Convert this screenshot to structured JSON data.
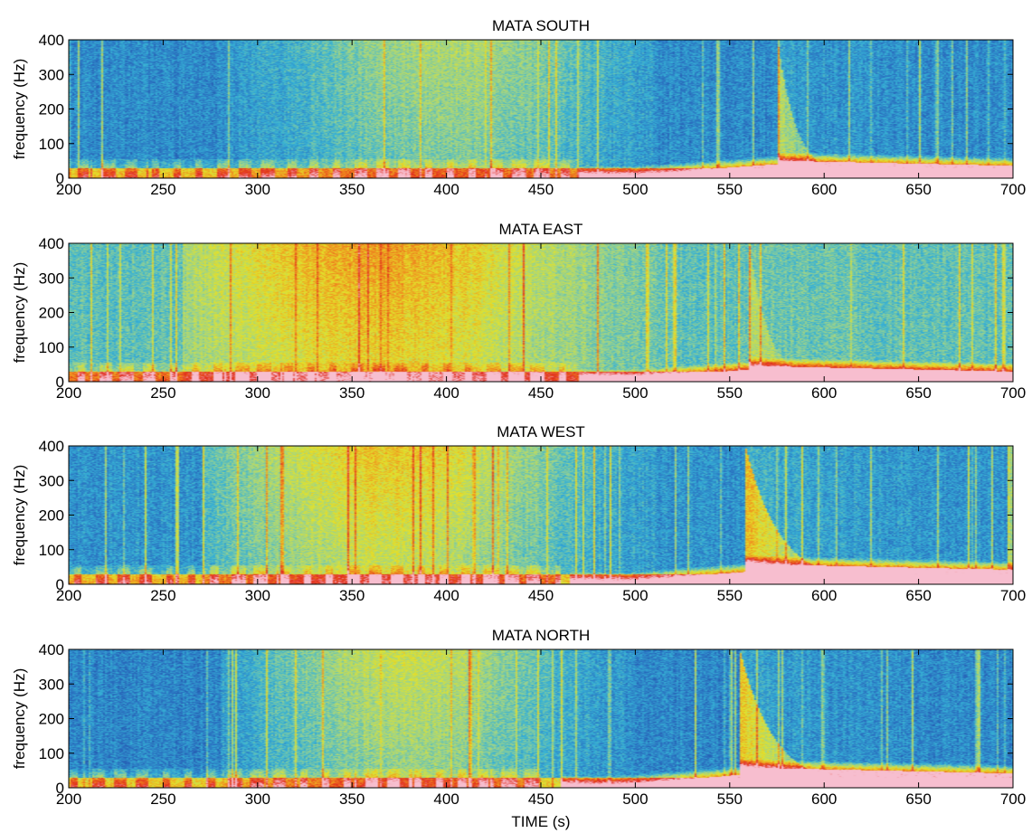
{
  "figure": {
    "xlabel": "TIME (s)"
  },
  "chart_data": [
    {
      "type": "heatmap",
      "title": "MATA SOUTH",
      "ylabel": "frequency (Hz)",
      "xlabel": "",
      "xlim": [
        200,
        700
      ],
      "ylim": [
        0,
        400
      ],
      "xticks": [
        "200",
        "250",
        "300",
        "350",
        "400",
        "450",
        "500",
        "550",
        "600",
        "650",
        "700"
      ],
      "yticks": [
        "0",
        "100",
        "200",
        "300",
        "400"
      ],
      "colormap": [
        "#1c2e8a",
        "#2a6fc0",
        "#36b1d6",
        "#9cd38c",
        "#e3e22a",
        "#f08c1f",
        "#e02b1c",
        "#f7bfd0"
      ],
      "features": {
        "background_level": 0.18,
        "broadband_window": [
          320,
          470
        ],
        "broadband_peak_time": 400,
        "broadband_level": 0.45,
        "onset_time": 575,
        "onset_kind": "moderate",
        "low_band_pulses_end": 470,
        "low_frequency_ramp_start": 470
      }
    },
    {
      "type": "heatmap",
      "title": "MATA EAST",
      "ylabel": "frequency (Hz)",
      "xlabel": "",
      "xlim": [
        200,
        700
      ],
      "ylim": [
        0,
        400
      ],
      "xticks": [
        "200",
        "250",
        "300",
        "350",
        "400",
        "450",
        "500",
        "550",
        "600",
        "650",
        "700"
      ],
      "yticks": [
        "0",
        "100",
        "200",
        "300",
        "400"
      ],
      "features": {
        "background_level": 0.32,
        "broadband_window": [
          300,
          480
        ],
        "broadband_peak_time": 360,
        "broadband_level": 0.66,
        "onset_time": 560,
        "onset_kind": "weak",
        "low_band_pulses_end": 470,
        "low_frequency_ramp_start": 470
      }
    },
    {
      "type": "heatmap",
      "title": "MATA WEST",
      "ylabel": "frequency (Hz)",
      "xlabel": "",
      "xlim": [
        200,
        700
      ],
      "ylim": [
        0,
        400
      ],
      "xticks": [
        "200",
        "250",
        "300",
        "350",
        "400",
        "450",
        "500",
        "550",
        "600",
        "650",
        "700"
      ],
      "yticks": [
        "0",
        "100",
        "200",
        "300",
        "400"
      ],
      "features": {
        "background_level": 0.2,
        "broadband_window": [
          310,
          470
        ],
        "broadband_peak_time": 370,
        "broadband_level": 0.6,
        "onset_time": 558,
        "onset_kind": "strong",
        "low_band_pulses_end": 460,
        "low_frequency_ramp_start": 465
      }
    },
    {
      "type": "heatmap",
      "title": "MATA NORTH",
      "ylabel": "frequency (Hz)",
      "xlabel": "TIME (s)",
      "xlim": [
        200,
        700
      ],
      "ylim": [
        0,
        400
      ],
      "xticks": [
        "200",
        "250",
        "300",
        "350",
        "400",
        "450",
        "500",
        "550",
        "600",
        "650",
        "700"
      ],
      "yticks": [
        "0",
        "100",
        "200",
        "300",
        "400"
      ],
      "features": {
        "background_level": 0.17,
        "broadband_window": [
          320,
          460
        ],
        "broadband_peak_time": 380,
        "broadband_level": 0.5,
        "onset_time": 555,
        "onset_kind": "strong",
        "low_band_pulses_end": 450,
        "low_frequency_ramp_start": 460
      }
    }
  ]
}
